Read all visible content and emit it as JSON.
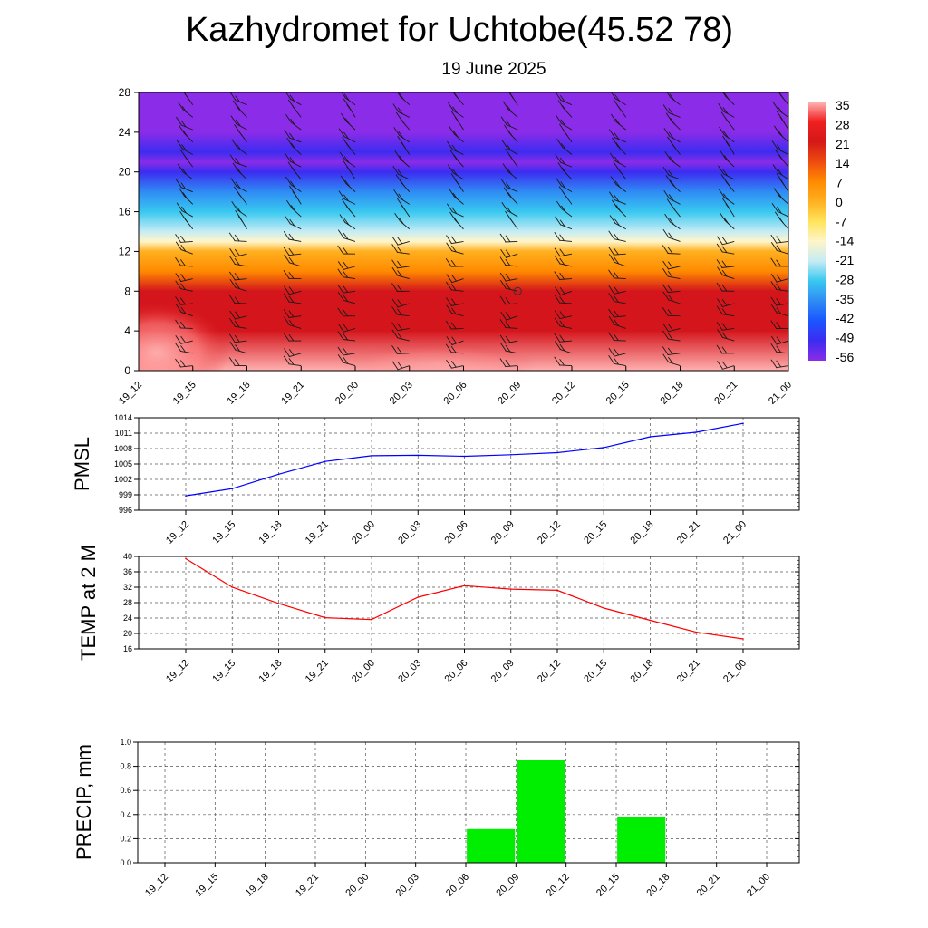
{
  "header": {
    "title": "Kazhydromet for Uchtobe(45.52 78)",
    "date": "19 June 2025"
  },
  "chart_data": [
    {
      "type": "heatmap",
      "title": "",
      "times": [
        "19_12",
        "19_15",
        "19_18",
        "19_21",
        "20_00",
        "20_03",
        "20_06",
        "20_09",
        "20_12",
        "20_15",
        "20_18",
        "20_21",
        "21_00"
      ],
      "y_ticks": [
        0,
        4,
        8,
        12,
        16,
        20,
        24,
        28
      ],
      "ylim": [
        0,
        28
      ],
      "colorbar_labels": [
        "35",
        "28",
        "21",
        "14",
        "7",
        "0",
        "-7",
        "-14",
        "-21",
        "-28",
        "-35",
        "-42",
        "-49",
        "-56"
      ],
      "temperature_profile": [
        {
          "height": 0,
          "value": 32
        },
        {
          "height": 4,
          "value": 22
        },
        {
          "height": 8,
          "value": 17
        },
        {
          "height": 10,
          "value": 10
        },
        {
          "height": 12,
          "value": 0
        },
        {
          "height": 13,
          "value": -12
        },
        {
          "height": 14,
          "value": -16
        },
        {
          "height": 16,
          "value": -28
        },
        {
          "height": 18,
          "value": -40
        },
        {
          "height": 20,
          "value": -52
        },
        {
          "height": 21,
          "value": -55
        },
        {
          "height": 22,
          "value": -50
        },
        {
          "height": 24,
          "value": -58
        },
        {
          "height": 28,
          "value": -60
        }
      ],
      "wind_barbs": "wind barbs overlaid at each time step and height level",
      "colors": {
        "hot": "#d4161c",
        "warm": "#ff8a00",
        "yellow": "#ffe45a",
        "zero": "#fff5c8",
        "cool": "#39c8f0",
        "cold": "#1b56ff",
        "coldest": "#8a2ce8"
      }
    },
    {
      "type": "line",
      "ylabel": "PMSL",
      "categories": [
        "19_12",
        "19_15",
        "19_18",
        "19_21",
        "20_00",
        "20_03",
        "20_06",
        "20_09",
        "20_12",
        "20_15",
        "20_18",
        "20_21",
        "21_00"
      ],
      "y_ticks": [
        996,
        999,
        1002,
        1005,
        1008,
        1011,
        1014
      ],
      "ylim": [
        996,
        1014
      ],
      "series": [
        {
          "values": [
            998.8,
            1000.2,
            1003.0,
            1005.5,
            1006.6,
            1006.7,
            1006.5,
            1006.8,
            1007.2,
            1008.2,
            1010.3,
            1011.2,
            1012.9
          ],
          "color": "#0000ff"
        }
      ],
      "grid": true
    },
    {
      "type": "line",
      "ylabel": "TEMP at 2 M",
      "categories": [
        "19_12",
        "19_15",
        "19_18",
        "19_21",
        "20_00",
        "20_03",
        "20_06",
        "20_09",
        "20_12",
        "20_15",
        "20_18",
        "20_21",
        "21_00"
      ],
      "y_ticks": [
        16,
        20,
        24,
        28,
        32,
        36,
        40
      ],
      "ylim": [
        16,
        40
      ],
      "series": [
        {
          "values": [
            39.4,
            32.0,
            27.8,
            24.1,
            23.6,
            29.4,
            32.4,
            31.5,
            31.2,
            26.6,
            23.4,
            20.3,
            18.6
          ],
          "color": "#ff0000"
        }
      ],
      "grid": true
    },
    {
      "type": "bar",
      "ylabel": "PRECIP, mm",
      "categories": [
        "19_12",
        "19_15",
        "19_18",
        "19_21",
        "20_00",
        "20_03",
        "20_06",
        "20_09",
        "20_12",
        "20_15",
        "20_18",
        "20_21",
        "21_00"
      ],
      "y_ticks": [
        "0.0",
        "0.2",
        "0.4",
        "0.6",
        "0.8",
        "1.0"
      ],
      "ylim": [
        0,
        1.0
      ],
      "series": [
        {
          "values": [
            0,
            0,
            0,
            0,
            0,
            0,
            0,
            0.28,
            0.85,
            0,
            0.38,
            0,
            0
          ],
          "color": "#00ee00"
        }
      ],
      "grid": true
    }
  ]
}
